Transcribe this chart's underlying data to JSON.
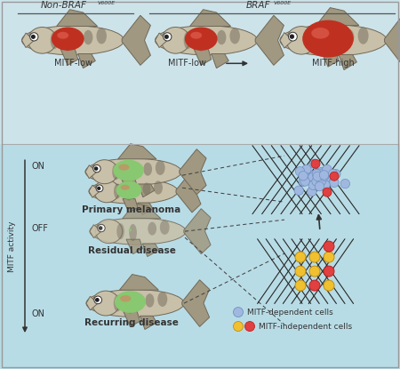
{
  "bg_top": "#cce4ea",
  "bg_bottom": "#b8dce6",
  "label_non_braf": "Non-BRAF",
  "label_non_braf_super": "V600E",
  "label_braf": "BRAF",
  "label_braf_super": "V600E",
  "label_mitf_low1": "MITF-low",
  "label_mitf_low2": "MITF-low",
  "label_mitf_high": "MITF-high",
  "label_primary": "Primary melanoma",
  "label_residual": "Residual disease",
  "label_recurring": "Recurring disease",
  "label_mitf_activity": "MITF activity",
  "label_dependent": "MITF-dependent cells",
  "label_independent": "MITF-independent cells",
  "color_fish_body": "#c8c0a8",
  "color_fish_belly": "#d8d0bc",
  "color_fish_dark": "#606050",
  "color_fish_fin": "#a09880",
  "color_fish_outline": "#706858",
  "color_red_spot": "#c03020",
  "color_green_spot": "#88c870",
  "color_green_spot_edge": "#60a850",
  "color_blue_cell": "#a0b8e0",
  "color_blue_cell_edge": "#7090c0",
  "color_red_cell": "#e04040",
  "color_red_cell_edge": "#c02020",
  "color_yellow_cell": "#f0c030",
  "color_yellow_cell_edge": "#c09010",
  "color_line": "#282828",
  "color_dashed": "#444444",
  "font_color": "#333333"
}
